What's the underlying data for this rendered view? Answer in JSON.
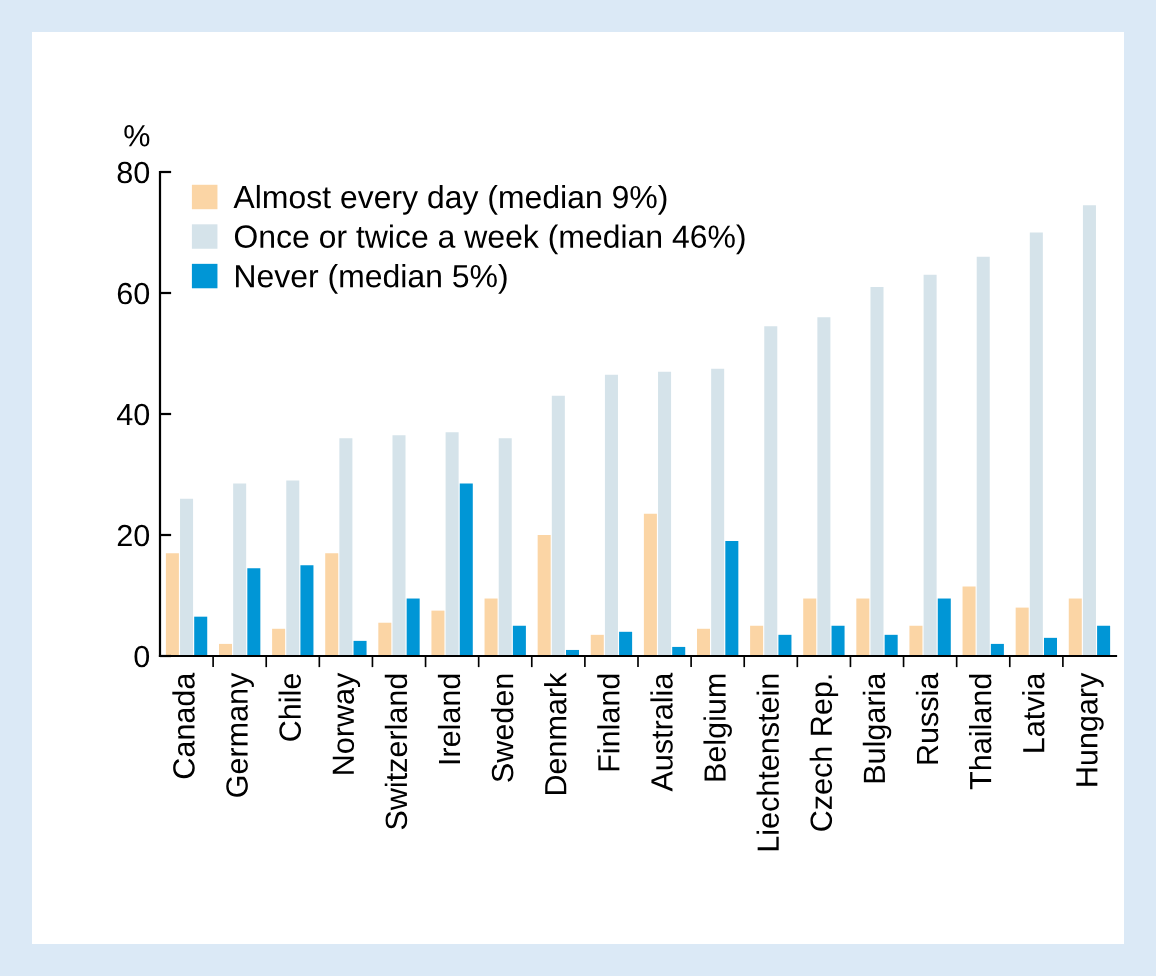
{
  "chart_data": {
    "type": "bar",
    "ylabel": "%",
    "categories": [
      "Canada",
      "Germany",
      "Chile",
      "Norway",
      "Switzerland",
      "Ireland",
      "Sweden",
      "Denmark",
      "Finland",
      "Australia",
      "Belgium",
      "Liechtenstein",
      "Czech Rep.",
      "Bulgaria",
      "Russia",
      "Thailand",
      "Latvia",
      "Hungary"
    ],
    "series": [
      {
        "name": "Almost every day (median 9%)",
        "color": "#fbd5a5",
        "values": [
          17,
          2,
          4.5,
          17,
          5.5,
          7.5,
          9.5,
          20,
          3.5,
          23.5,
          4.5,
          5,
          9.5,
          9.5,
          5,
          11.5,
          8,
          9.5
        ]
      },
      {
        "name": "Once or twice a week (median 46%)",
        "color": "#d5e3ea",
        "values": [
          26,
          28.5,
          29,
          36,
          36.5,
          37,
          36,
          43,
          46.5,
          47,
          47.5,
          54.5,
          56,
          61,
          63,
          66,
          70,
          74.5
        ]
      },
      {
        "name": "Never (median 5%)",
        "color": "#0096d6",
        "values": [
          6.5,
          14.5,
          15,
          2.5,
          9.5,
          28.5,
          5,
          1,
          4,
          1.5,
          19,
          3.5,
          5,
          3.5,
          9.5,
          2,
          3,
          5
        ]
      }
    ],
    "ylim": [
      0,
      80
    ],
    "yticks": [
      0,
      20,
      40,
      60,
      80
    ],
    "grid": false,
    "legend": "top left"
  }
}
